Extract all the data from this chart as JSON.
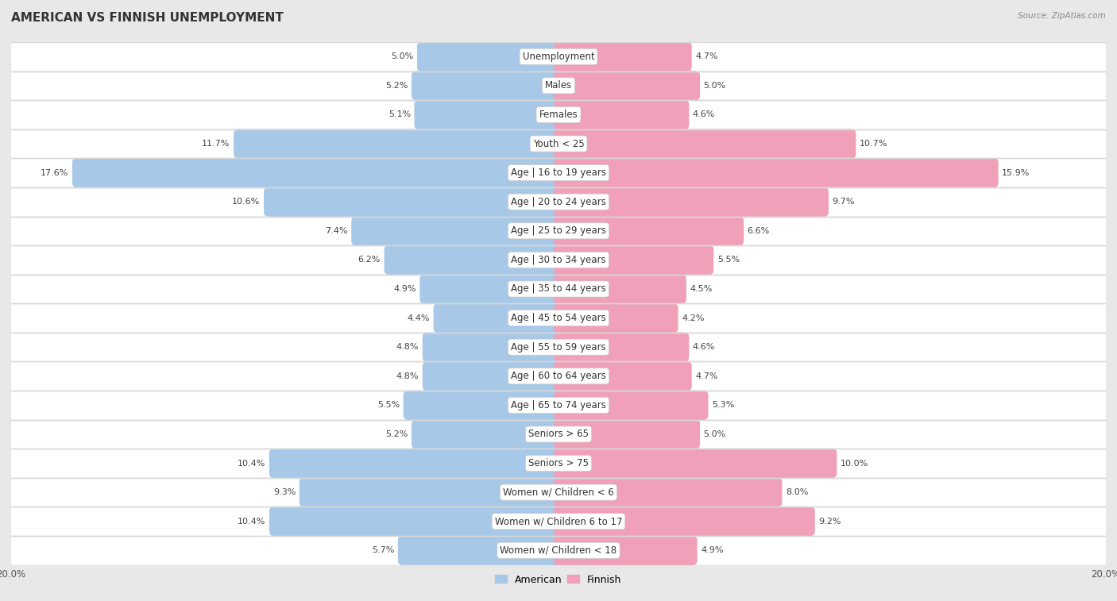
{
  "title": "AMERICAN VS FINNISH UNEMPLOYMENT",
  "source": "Source: ZipAtlas.com",
  "categories": [
    "Unemployment",
    "Males",
    "Females",
    "Youth < 25",
    "Age | 16 to 19 years",
    "Age | 20 to 24 years",
    "Age | 25 to 29 years",
    "Age | 30 to 34 years",
    "Age | 35 to 44 years",
    "Age | 45 to 54 years",
    "Age | 55 to 59 years",
    "Age | 60 to 64 years",
    "Age | 65 to 74 years",
    "Seniors > 65",
    "Seniors > 75",
    "Women w/ Children < 6",
    "Women w/ Children 6 to 17",
    "Women w/ Children < 18"
  ],
  "american": [
    5.0,
    5.2,
    5.1,
    11.7,
    17.6,
    10.6,
    7.4,
    6.2,
    4.9,
    4.4,
    4.8,
    4.8,
    5.5,
    5.2,
    10.4,
    9.3,
    10.4,
    5.7
  ],
  "finnish": [
    4.7,
    5.0,
    4.6,
    10.7,
    15.9,
    9.7,
    6.6,
    5.5,
    4.5,
    4.2,
    4.6,
    4.7,
    5.3,
    5.0,
    10.0,
    8.0,
    9.2,
    4.9
  ],
  "american_color": "#a8c8e8",
  "finnish_color": "#f0a0b8",
  "row_bg_color": "#ffffff",
  "sep_color": "#d8d8d8",
  "outer_bg_color": "#e8e8e8",
  "label_bg": "#ffffff",
  "axis_max": 20.0,
  "bar_height": 0.68,
  "legend_labels": [
    "American",
    "Finnish"
  ],
  "title_fontsize": 11,
  "label_fontsize": 8.5,
  "value_fontsize": 8.0
}
